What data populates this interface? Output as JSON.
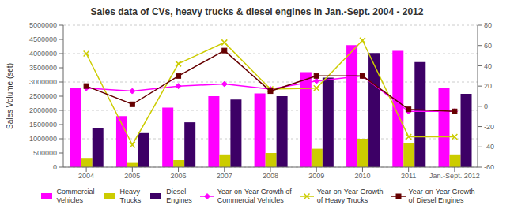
{
  "chart_data": {
    "type": "bar",
    "title": "Sales data of CVs, heavy trucks & diesel engines in Jan.-Sept. 2004 - 2012",
    "ylabel": "Sales Volume (set)",
    "categories": [
      "2004",
      "2005",
      "2006",
      "2007",
      "2008",
      "2009",
      "2010",
      "2011",
      "Jan.-Sept. 2012"
    ],
    "series": [
      {
        "name": "Commercial\nVehicles",
        "type": "bar",
        "color": "#ff00ff",
        "values": [
          2800000,
          1800000,
          2100000,
          2500000,
          2600000,
          3350000,
          4300000,
          4100000,
          2800000
        ]
      },
      {
        "name": "Heavy\nTrucks",
        "type": "bar",
        "color": "#cccc00",
        "values": [
          300000,
          150000,
          250000,
          450000,
          500000,
          650000,
          1000000,
          850000,
          450000
        ]
      },
      {
        "name": "Diesel\nEngines",
        "type": "bar",
        "color": "#3d0066",
        "values": [
          1380000,
          1200000,
          1580000,
          2380000,
          2500000,
          3150000,
          4020000,
          3700000,
          2580000
        ]
      },
      {
        "name": "Year-on-Year Growth of\nCommercial Vehicles",
        "type": "line",
        "axis": "y2",
        "color": "#ff00ff",
        "marker": "diamond",
        "values": [
          18,
          15,
          20,
          22,
          17,
          25,
          30,
          -5,
          -5
        ]
      },
      {
        "name": "Year-on-Year Growth\nof Heavy Trucks",
        "type": "line",
        "axis": "y2",
        "color": "#cccc00",
        "marker": "x",
        "values": [
          52,
          -38,
          42,
          63,
          17,
          18,
          65,
          -30,
          -30
        ]
      },
      {
        "name": "Year-on-Year Growth\nof Diesel Engines",
        "type": "line",
        "axis": "y2",
        "color": "#660000",
        "marker": "square",
        "values": [
          20,
          2,
          30,
          55,
          15,
          30,
          30,
          -3,
          -5
        ]
      }
    ],
    "ylim": [
      0,
      5000000
    ],
    "yticks": [
      0,
      500000,
      1000000,
      1500000,
      2000000,
      2500000,
      3000000,
      3500000,
      4000000,
      4500000,
      5000000
    ],
    "y2lim": [
      -60,
      80
    ],
    "y2ticks": [
      -60,
      -40,
      -20,
      0,
      20,
      40,
      60,
      80
    ],
    "grid": true,
    "legend": "bottom"
  }
}
